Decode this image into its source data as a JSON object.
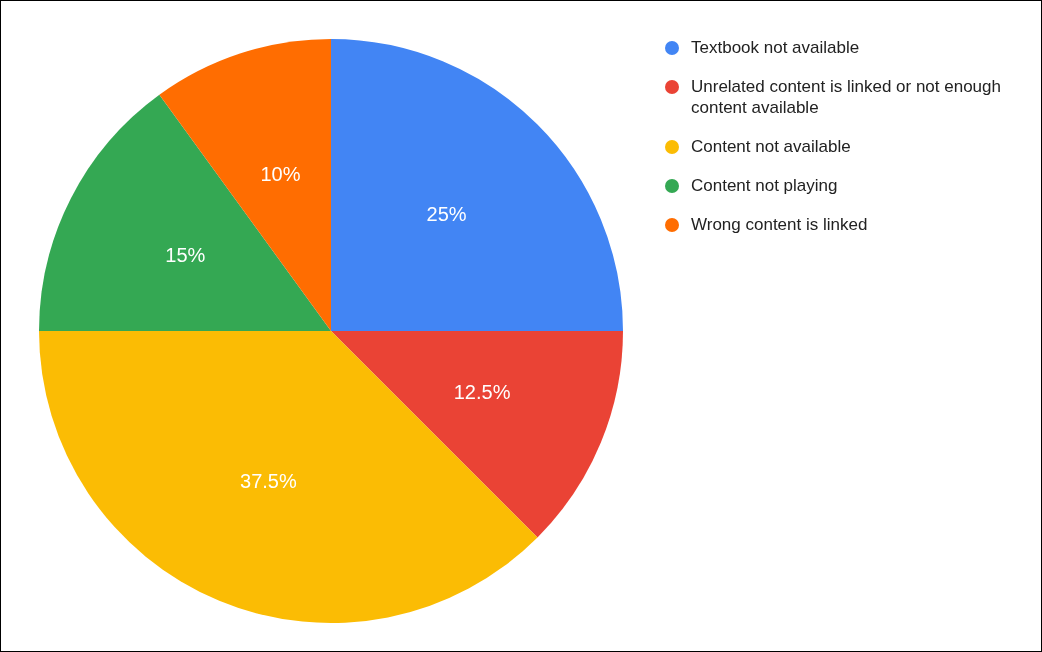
{
  "chart_data": {
    "type": "pie",
    "categories": [
      "Textbook not available",
      "Unrelated content is linked or not enough content available",
      "Content not available",
      "Content not playing",
      "Wrong content is linked"
    ],
    "values": [
      25,
      12.5,
      37.5,
      15,
      10
    ],
    "colors": [
      "#4285f4",
      "#ea4335",
      "#fbbc04",
      "#34a853",
      "#ff6d01"
    ],
    "value_labels": [
      "25%",
      "12.5%",
      "37.5%",
      "15%",
      "10%"
    ],
    "legend": "top right"
  }
}
